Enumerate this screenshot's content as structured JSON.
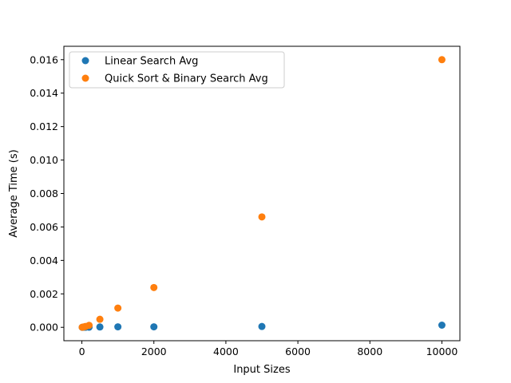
{
  "chart_data": {
    "type": "scatter",
    "title": "",
    "xlabel": "Input Sizes",
    "ylabel": "Average Time (s)",
    "xlim": [
      -500,
      10500
    ],
    "ylim": [
      -0.0008,
      0.0168
    ],
    "x_ticks": [
      0,
      2000,
      4000,
      6000,
      8000,
      10000
    ],
    "x_tick_labels": [
      "0",
      "2000",
      "4000",
      "6000",
      "8000",
      "10000"
    ],
    "y_ticks": [
      0.0,
      0.002,
      0.004,
      0.006,
      0.008,
      0.01,
      0.012,
      0.014,
      0.016
    ],
    "y_tick_labels": [
      "0.000",
      "0.002",
      "0.004",
      "0.006",
      "0.008",
      "0.010",
      "0.012",
      "0.014",
      "0.016"
    ],
    "grid": false,
    "legend_position": "top-left",
    "series": [
      {
        "name": "Linear Search Avg",
        "color": "#1f77b4",
        "x": [
          10,
          50,
          100,
          200,
          500,
          1000,
          2000,
          5000,
          10000
        ],
        "y": [
          5e-07,
          2e-06,
          4e-06,
          8e-06,
          2e-05,
          3e-05,
          3e-05,
          5e-05,
          0.00013
        ]
      },
      {
        "name": "Quick Sort & Binary Search Avg",
        "color": "#ff7f0e",
        "x": [
          10,
          50,
          100,
          200,
          500,
          1000,
          2000,
          5000,
          10000
        ],
        "y": [
          5e-06,
          2e-05,
          5e-05,
          0.00012,
          0.00048,
          0.00115,
          0.00238,
          0.0066,
          0.016
        ]
      }
    ]
  }
}
